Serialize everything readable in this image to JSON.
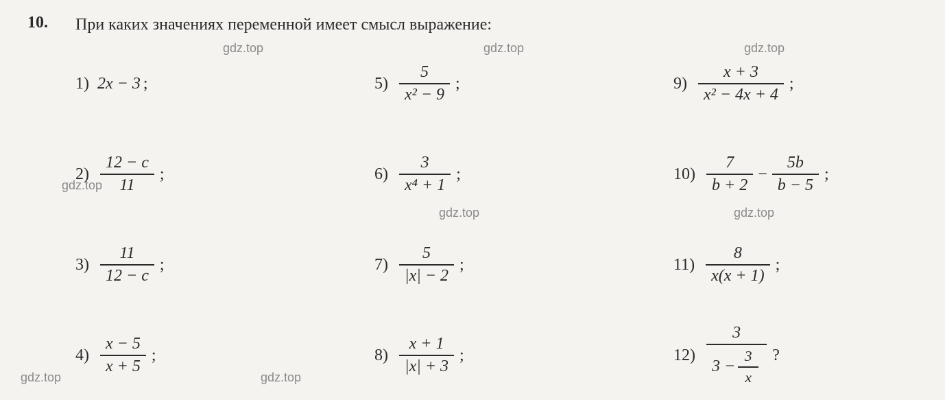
{
  "problem": {
    "number": "10.",
    "text": "При каких значениях переменной имеет смысл выра­жение:"
  },
  "watermark_text": "gdz.top",
  "items": [
    {
      "n": "1)",
      "type": "plain",
      "expr": "2x − 3",
      "punct": ";"
    },
    {
      "n": "2)",
      "type": "frac",
      "num": "12 − c",
      "den": "11",
      "punct": ";"
    },
    {
      "n": "3)",
      "type": "frac",
      "num": "11",
      "den": "12 − c",
      "punct": ";"
    },
    {
      "n": "4)",
      "type": "frac",
      "num": "x − 5",
      "den": "x + 5",
      "punct": ";"
    },
    {
      "n": "5)",
      "type": "frac",
      "num": "5",
      "den": "x² − 9",
      "punct": ";"
    },
    {
      "n": "6)",
      "type": "frac",
      "num": "3",
      "den": "x⁴ + 1",
      "punct": ";"
    },
    {
      "n": "7)",
      "type": "frac",
      "num": "5",
      "den": "|x| − 2",
      "punct": ";"
    },
    {
      "n": "8)",
      "type": "frac",
      "num": "x + 1",
      "den": "|x| + 3",
      "punct": ";"
    },
    {
      "n": "9)",
      "type": "frac",
      "num": "x + 3",
      "den": "x² − 4x + 4",
      "punct": ";"
    },
    {
      "n": "10)",
      "type": "diff",
      "num1": "7",
      "den1": "b + 2",
      "num2": "5b",
      "den2": "b − 5",
      "punct": ";"
    },
    {
      "n": "11)",
      "type": "frac",
      "num": "8",
      "den": "x(x + 1)",
      "punct": ";"
    },
    {
      "n": "12)",
      "type": "nested",
      "num": "3",
      "den_left": "3 −",
      "inner_num": "3",
      "inner_den": "x",
      "punct": "?"
    }
  ],
  "colors": {
    "background": "#f5f3f0",
    "text": "#2a2a2a",
    "watermark": "#8a8a8a"
  }
}
